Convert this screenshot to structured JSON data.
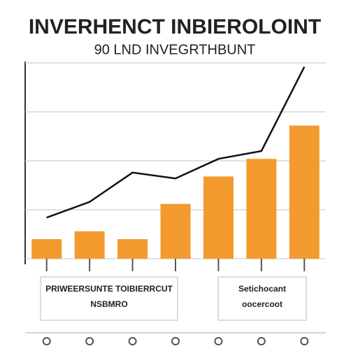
{
  "chart_data": {
    "type": "bar",
    "title": "INVERHENCT INBIEROLOINT",
    "subtitle": "90 LND INVEGRTHBUNT",
    "categories": [
      null,
      null,
      null,
      null,
      null,
      null,
      null
    ],
    "series": [
      {
        "color": "#f39a2e",
        "values": [
          10,
          14,
          10,
          28,
          42,
          51,
          68
        ]
      },
      {
        "type": "line",
        "color": "#111111",
        "values": [
          21,
          29,
          44,
          41,
          51,
          55,
          98
        ]
      }
    ],
    "annotations": [
      {
        "lines": [
          "PRIWEERSUNTE TOIBIERRCUT",
          "NSBMRO"
        ]
      },
      {
        "lines": [
          "Setichocant",
          "oocercoot"
        ]
      }
    ],
    "ylim": [
      0,
      100
    ],
    "yticks": [
      0,
      25,
      50,
      75,
      100
    ],
    "grid": true
  }
}
